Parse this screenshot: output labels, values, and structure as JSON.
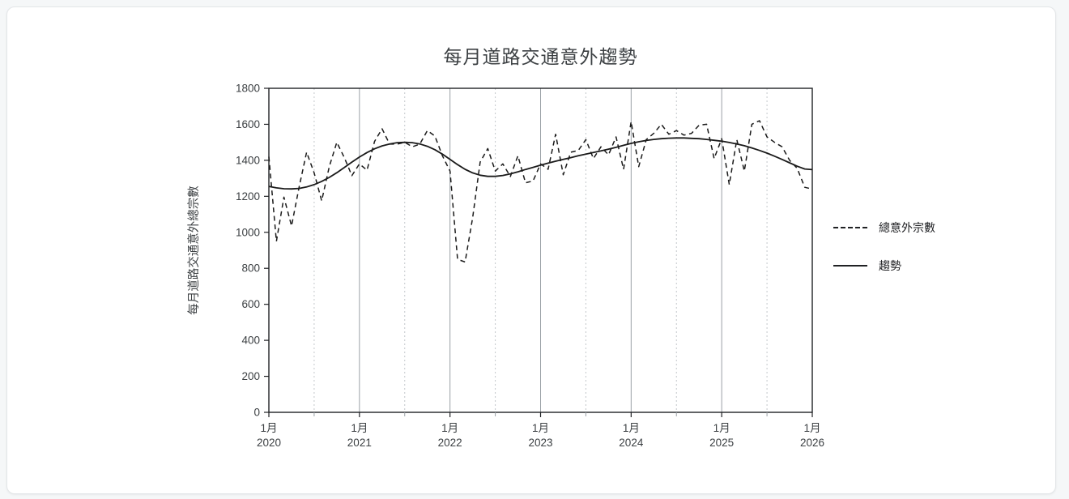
{
  "chart": {
    "title": "每月道路交通意外趨勢",
    "y_axis_label": "每月道路交通意外總宗數",
    "legend": {
      "items": [
        {
          "label": "總意外宗數",
          "style": "dashed"
        },
        {
          "label": "趨勢",
          "style": "solid"
        }
      ],
      "position": "right"
    }
  },
  "chart_data": {
    "type": "line",
    "title": "每月道路交通意外趨勢",
    "xlabel": "",
    "ylabel": "每月道路交通意外總宗數",
    "ylim": [
      0,
      1800
    ],
    "y_ticks": [
      0,
      200,
      400,
      600,
      800,
      1000,
      1200,
      1400,
      1600,
      1800
    ],
    "x_range_months": [
      "2020-01",
      "2026-01"
    ],
    "x_tick_month_label": "1月",
    "x_tick_years": [
      "2020",
      "2021",
      "2022",
      "2023",
      "2024",
      "2025",
      "2026"
    ],
    "grid": "vertical-only (solid at January, dotted at July)",
    "legend_position": "right",
    "colors": {
      "series": "#1a1a1a",
      "trend": "#1a1a1a",
      "grid_major": "#9aa0a6",
      "grid_minor": "#c4c7cb",
      "axis": "#202124",
      "text": "#3c4043"
    },
    "series": [
      {
        "name": "總意外宗數",
        "style": "dashed",
        "values": [
          1420,
          950,
          1195,
          1035,
          1250,
          1445,
          1330,
          1175,
          1365,
          1500,
          1415,
          1315,
          1380,
          1345,
          1505,
          1575,
          1490,
          1490,
          1500,
          1475,
          1490,
          1565,
          1535,
          1425,
          1340,
          850,
          835,
          1080,
          1390,
          1465,
          1340,
          1380,
          1310,
          1425,
          1275,
          1285,
          1380,
          1350,
          1545,
          1320,
          1445,
          1455,
          1515,
          1410,
          1475,
          1430,
          1530,
          1350,
          1615,
          1365,
          1515,
          1550,
          1600,
          1545,
          1565,
          1540,
          1550,
          1595,
          1600,
          1410,
          1520,
          1265,
          1515,
          1340,
          1600,
          1620,
          1530,
          1500,
          1475,
          1400,
          1355,
          1250,
          1240
        ]
      },
      {
        "name": "趨勢",
        "style": "solid",
        "values": [
          1255,
          1247,
          1242,
          1241,
          1244,
          1252,
          1265,
          1283,
          1305,
          1331,
          1360,
          1390,
          1418,
          1443,
          1464,
          1480,
          1491,
          1498,
          1500,
          1498,
          1491,
          1478,
          1459,
          1434,
          1405,
          1376,
          1350,
          1330,
          1317,
          1311,
          1311,
          1316,
          1325,
          1336,
          1349,
          1361,
          1373,
          1384,
          1395,
          1405,
          1415,
          1425,
          1434,
          1443,
          1452,
          1462,
          1472,
          1483,
          1494,
          1503,
          1510,
          1516,
          1520,
          1523,
          1524,
          1524,
          1522,
          1520,
          1516,
          1511,
          1506,
          1499,
          1491,
          1481,
          1469,
          1455,
          1440,
          1423,
          1405,
          1386,
          1367,
          1352,
          1348
        ]
      }
    ]
  }
}
